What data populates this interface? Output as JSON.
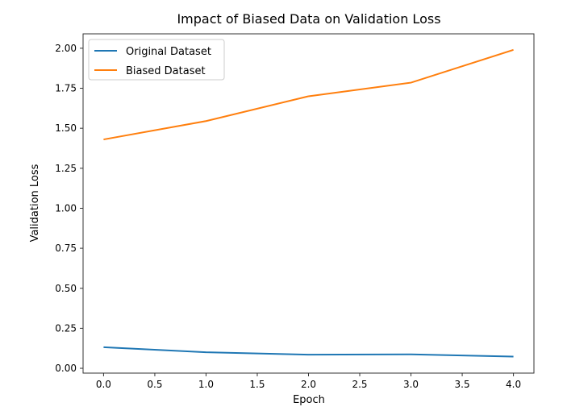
{
  "chart_data": {
    "type": "line",
    "title": "Impact of Biased Data on Validation Loss",
    "xlabel": "Epoch",
    "ylabel": "Validation Loss",
    "x": [
      0,
      1,
      2,
      3,
      4
    ],
    "xlim": [
      -0.2,
      4.2
    ],
    "ylim": [
      -0.03,
      2.09
    ],
    "xticks": [
      "0.0",
      "0.5",
      "1.0",
      "1.5",
      "2.0",
      "2.5",
      "3.0",
      "3.5",
      "4.0"
    ],
    "yticks": [
      "0.00",
      "0.25",
      "0.50",
      "0.75",
      "1.00",
      "1.25",
      "1.50",
      "1.75",
      "2.00"
    ],
    "grid": false,
    "legend_position": "top-left",
    "series": [
      {
        "name": "Original Dataset",
        "color": "#1f77b4",
        "values": [
          0.132,
          0.1,
          0.085,
          0.087,
          0.073
        ]
      },
      {
        "name": "Biased Dataset",
        "color": "#ff7f0e",
        "values": [
          1.43,
          1.545,
          1.7,
          1.785,
          1.99
        ]
      }
    ]
  }
}
